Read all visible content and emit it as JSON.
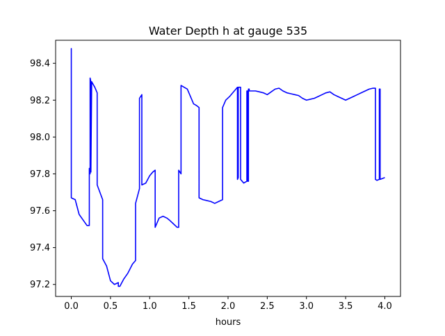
{
  "chart_data": {
    "type": "line",
    "title": "Water Depth h at gauge 535",
    "xlabel": "hours",
    "ylabel": "",
    "xlim": [
      -0.2,
      4.2
    ],
    "ylim": [
      97.135,
      98.525
    ],
    "xticks": [
      0.0,
      0.5,
      1.0,
      1.5,
      2.0,
      2.5,
      3.0,
      3.5,
      4.0
    ],
    "xtick_labels": [
      "0.0",
      "0.5",
      "1.0",
      "1.5",
      "2.0",
      "2.5",
      "3.0",
      "3.5",
      "4.0"
    ],
    "yticks": [
      97.2,
      97.4,
      97.6,
      97.8,
      98.0,
      98.2,
      98.4
    ],
    "ytick_labels": [
      "97.2",
      "97.4",
      "97.6",
      "97.8",
      "98.0",
      "98.2",
      "98.4"
    ],
    "grid": false,
    "legend": "none",
    "series": [
      {
        "color": "#0000ff",
        "x": [
          0.0,
          0.0,
          0.0,
          0.05,
          0.1,
          0.15,
          0.2,
          0.23,
          0.23,
          0.24,
          0.24,
          0.25,
          0.25,
          0.26,
          0.3,
          0.33,
          0.33,
          0.4,
          0.4,
          0.45,
          0.5,
          0.55,
          0.6,
          0.6,
          0.62,
          0.67,
          0.72,
          0.78,
          0.82,
          0.82,
          0.87,
          0.87,
          0.9,
          0.9,
          0.95,
          1.0,
          1.04,
          1.07,
          1.07,
          1.12,
          1.17,
          1.22,
          1.25,
          1.3,
          1.35,
          1.37,
          1.37,
          1.4,
          1.4,
          1.44,
          1.48,
          1.52,
          1.56,
          1.6,
          1.63,
          1.63,
          1.68,
          1.73,
          1.78,
          1.83,
          1.88,
          1.93,
          1.93,
          1.97,
          2.02,
          2.06,
          2.1,
          2.12,
          2.12,
          2.13,
          2.13,
          2.16,
          2.16,
          2.18,
          2.18,
          2.2,
          2.24,
          2.24,
          2.25,
          2.25,
          2.26,
          2.26,
          2.27,
          2.27,
          2.3,
          2.35,
          2.4,
          2.45,
          2.5,
          2.55,
          2.6,
          2.65,
          2.7,
          2.75,
          2.8,
          2.85,
          2.9,
          2.95,
          3.0,
          3.05,
          3.1,
          3.15,
          3.2,
          3.25,
          3.3,
          3.35,
          3.4,
          3.45,
          3.5,
          3.55,
          3.6,
          3.65,
          3.7,
          3.75,
          3.8,
          3.85,
          3.88,
          3.88,
          3.9,
          3.93,
          3.93,
          3.94,
          3.94,
          3.97,
          4.0
        ],
        "y": [
          97.99,
          98.48,
          97.67,
          97.66,
          97.58,
          97.55,
          97.52,
          97.52,
          97.83,
          97.8,
          98.32,
          98.3,
          97.81,
          98.3,
          98.27,
          98.24,
          97.74,
          97.66,
          97.34,
          97.3,
          97.22,
          97.2,
          97.21,
          97.19,
          97.19,
          97.23,
          97.26,
          97.31,
          97.33,
          97.64,
          97.72,
          98.21,
          98.23,
          97.74,
          97.75,
          97.79,
          97.81,
          97.82,
          97.51,
          97.56,
          97.57,
          97.56,
          97.55,
          97.53,
          97.51,
          97.51,
          97.82,
          97.8,
          98.28,
          98.27,
          98.26,
          98.22,
          98.18,
          98.17,
          98.16,
          97.67,
          97.66,
          97.655,
          97.65,
          97.64,
          97.65,
          97.66,
          98.16,
          98.2,
          98.22,
          98.24,
          98.26,
          98.27,
          97.77,
          97.78,
          98.27,
          98.27,
          97.77,
          97.76,
          97.76,
          97.75,
          97.76,
          98.25,
          98.25,
          97.76,
          97.76,
          98.26,
          98.26,
          98.25,
          98.25,
          98.25,
          98.245,
          98.24,
          98.23,
          98.245,
          98.26,
          98.265,
          98.25,
          98.24,
          98.235,
          98.23,
          98.225,
          98.21,
          98.2,
          98.205,
          98.21,
          98.22,
          98.23,
          98.24,
          98.245,
          98.23,
          98.22,
          98.21,
          98.2,
          98.21,
          98.22,
          98.23,
          98.24,
          98.25,
          98.26,
          98.265,
          98.265,
          97.77,
          97.765,
          97.77,
          98.26,
          98.26,
          97.77,
          97.775,
          97.78
        ]
      }
    ]
  }
}
